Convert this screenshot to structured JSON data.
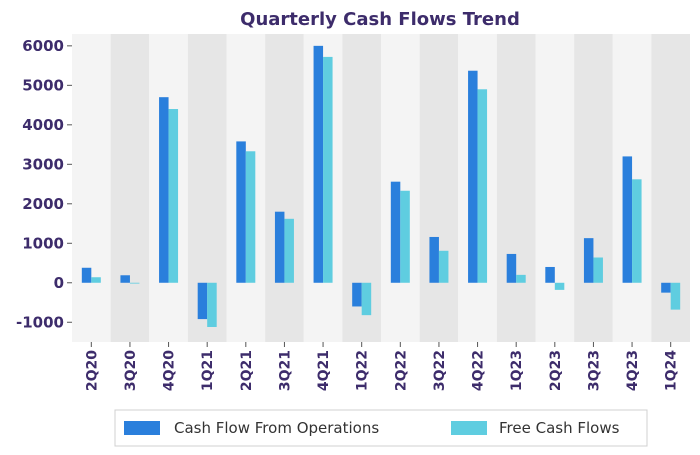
{
  "chart_data": {
    "type": "bar",
    "title": "Quarterly Cash Flows Trend",
    "xlabel": "",
    "ylabel": "",
    "categories": [
      "2Q20",
      "3Q20",
      "4Q20",
      "1Q21",
      "2Q21",
      "3Q21",
      "4Q21",
      "1Q22",
      "2Q22",
      "3Q22",
      "4Q22",
      "1Q23",
      "2Q23",
      "3Q23",
      "4Q23",
      "1Q24"
    ],
    "series": [
      {
        "name": "Cash Flow From Operations",
        "color": "#2a7fdc",
        "values": [
          380,
          190,
          4700,
          -920,
          3580,
          1800,
          6000,
          -600,
          2560,
          1160,
          5370,
          730,
          400,
          1130,
          3200,
          -250
        ]
      },
      {
        "name": "Free Cash Flows",
        "color": "#5fcde0",
        "values": [
          140,
          -20,
          4400,
          -1120,
          3330,
          1620,
          5720,
          -820,
          2330,
          810,
          4900,
          200,
          -180,
          640,
          2620,
          -680
        ]
      }
    ],
    "ylim": [
      -1500,
      6300
    ],
    "yticks": [
      -1000,
      0,
      1000,
      2000,
      3000,
      4000,
      5000,
      6000
    ],
    "grid": false,
    "legend_position": "bottom",
    "colors": {
      "title": "#3d2c6b",
      "tick_labels": "#3d2c6b",
      "band_light": "#f4f4f4",
      "band_dark": "#e6e6e6"
    }
  }
}
